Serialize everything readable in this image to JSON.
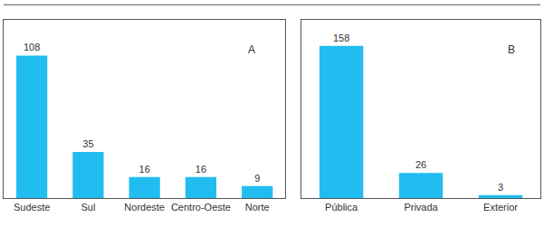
{
  "chart_data": [
    {
      "type": "bar",
      "annotations": [
        "A"
      ],
      "categories": [
        "Sudeste",
        "Sul",
        "Nordeste",
        "Centro-Oeste",
        "Norte"
      ],
      "values": [
        108,
        35,
        16,
        16,
        9
      ],
      "color": "#21bdf0",
      "ylim": [
        0,
        135
      ],
      "grid": false,
      "data_labels": true,
      "tick_labels": "x"
    },
    {
      "type": "bar",
      "annotations": [
        "B"
      ],
      "categories": [
        "Pública",
        "Privada",
        "Exterior"
      ],
      "values": [
        158,
        26,
        3
      ],
      "color": "#21bdf0",
      "ylim": [
        0,
        185
      ],
      "grid": false,
      "data_labels": true,
      "tick_labels": "x"
    }
  ]
}
